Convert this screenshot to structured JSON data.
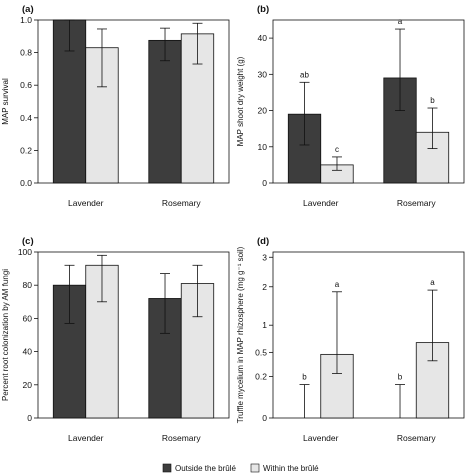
{
  "legend": {
    "items": [
      {
        "label": "Outside the brûlé",
        "color": "#3d3d3d"
      },
      {
        "label": "Within the brûlé",
        "color": "#e6e6e6"
      }
    ]
  },
  "chart_data": [
    {
      "panel": "(a)",
      "type": "bar",
      "ylabel": "MAP survival",
      "categories": [
        "Lavender",
        "Rosemary"
      ],
      "ylim": [
        0,
        1.0
      ],
      "yticks": [
        "0.0",
        "0.2",
        "0.4",
        "0.6",
        "0.8",
        "1.0"
      ],
      "series": [
        {
          "values": [
            1.0,
            0.875
          ],
          "err_low": [
            0.81,
            0.75
          ],
          "err_high": [
            1.0,
            0.95
          ]
        },
        {
          "values": [
            0.83,
            0.915
          ],
          "err_low": [
            0.59,
            0.73
          ],
          "err_high": [
            0.945,
            0.98
          ]
        }
      ],
      "letters": [
        [
          "",
          ""
        ],
        [
          "",
          ""
        ]
      ]
    },
    {
      "panel": "(b)",
      "type": "bar",
      "ylabel": "MAP shoot dry weight (g)",
      "categories": [
        "Lavender",
        "Rosemary"
      ],
      "ylim": [
        0,
        45
      ],
      "yticks": [
        "0",
        "10",
        "20",
        "30",
        "40"
      ],
      "series": [
        {
          "values": [
            19.0,
            29.0
          ],
          "err_low": [
            10.5,
            20.0
          ],
          "err_high": [
            27.8,
            42.5
          ]
        },
        {
          "values": [
            5.0,
            14.0
          ],
          "err_low": [
            3.5,
            9.5
          ],
          "err_high": [
            7.2,
            20.7
          ]
        }
      ],
      "letters": [
        [
          "ab",
          "a"
        ],
        [
          "c",
          "b"
        ]
      ]
    },
    {
      "panel": "(c)",
      "type": "bar",
      "ylabel": "Percent root colonization by AM fungi",
      "categories": [
        "Lavender",
        "Rosemary"
      ],
      "ylim": [
        0,
        100
      ],
      "yticks": [
        "0",
        "20",
        "40",
        "60",
        "80",
        "100"
      ],
      "series": [
        {
          "values": [
            80,
            72
          ],
          "err_low": [
            57,
            51
          ],
          "err_high": [
            92,
            87
          ]
        },
        {
          "values": [
            92,
            81
          ],
          "err_low": [
            70,
            61
          ],
          "err_high": [
            98,
            92
          ]
        }
      ],
      "letters": [
        [
          "",
          ""
        ],
        [
          "",
          ""
        ]
      ]
    },
    {
      "panel": "(d)",
      "type": "bar",
      "scale": "sqrt",
      "ylabel": "Truffle mycelium in MAP rhizosphere (mg g⁻¹ soil)",
      "categories": [
        "Lavender",
        "Rosemary"
      ],
      "ylim": [
        0,
        3.2
      ],
      "yticks": [
        "0",
        "0.2",
        "0.5",
        "1",
        "2",
        "3"
      ],
      "series": [
        {
          "values": [
            0,
            0
          ],
          "err_low": [
            0,
            0
          ],
          "err_high": [
            0.13,
            0.13
          ]
        },
        {
          "values": [
            0.47,
            0.66
          ],
          "err_low": [
            0.23,
            0.38
          ],
          "err_high": [
            1.85,
            1.9
          ]
        }
      ],
      "letters": [
        [
          "b",
          "b"
        ],
        [
          "a",
          "a"
        ]
      ]
    }
  ]
}
